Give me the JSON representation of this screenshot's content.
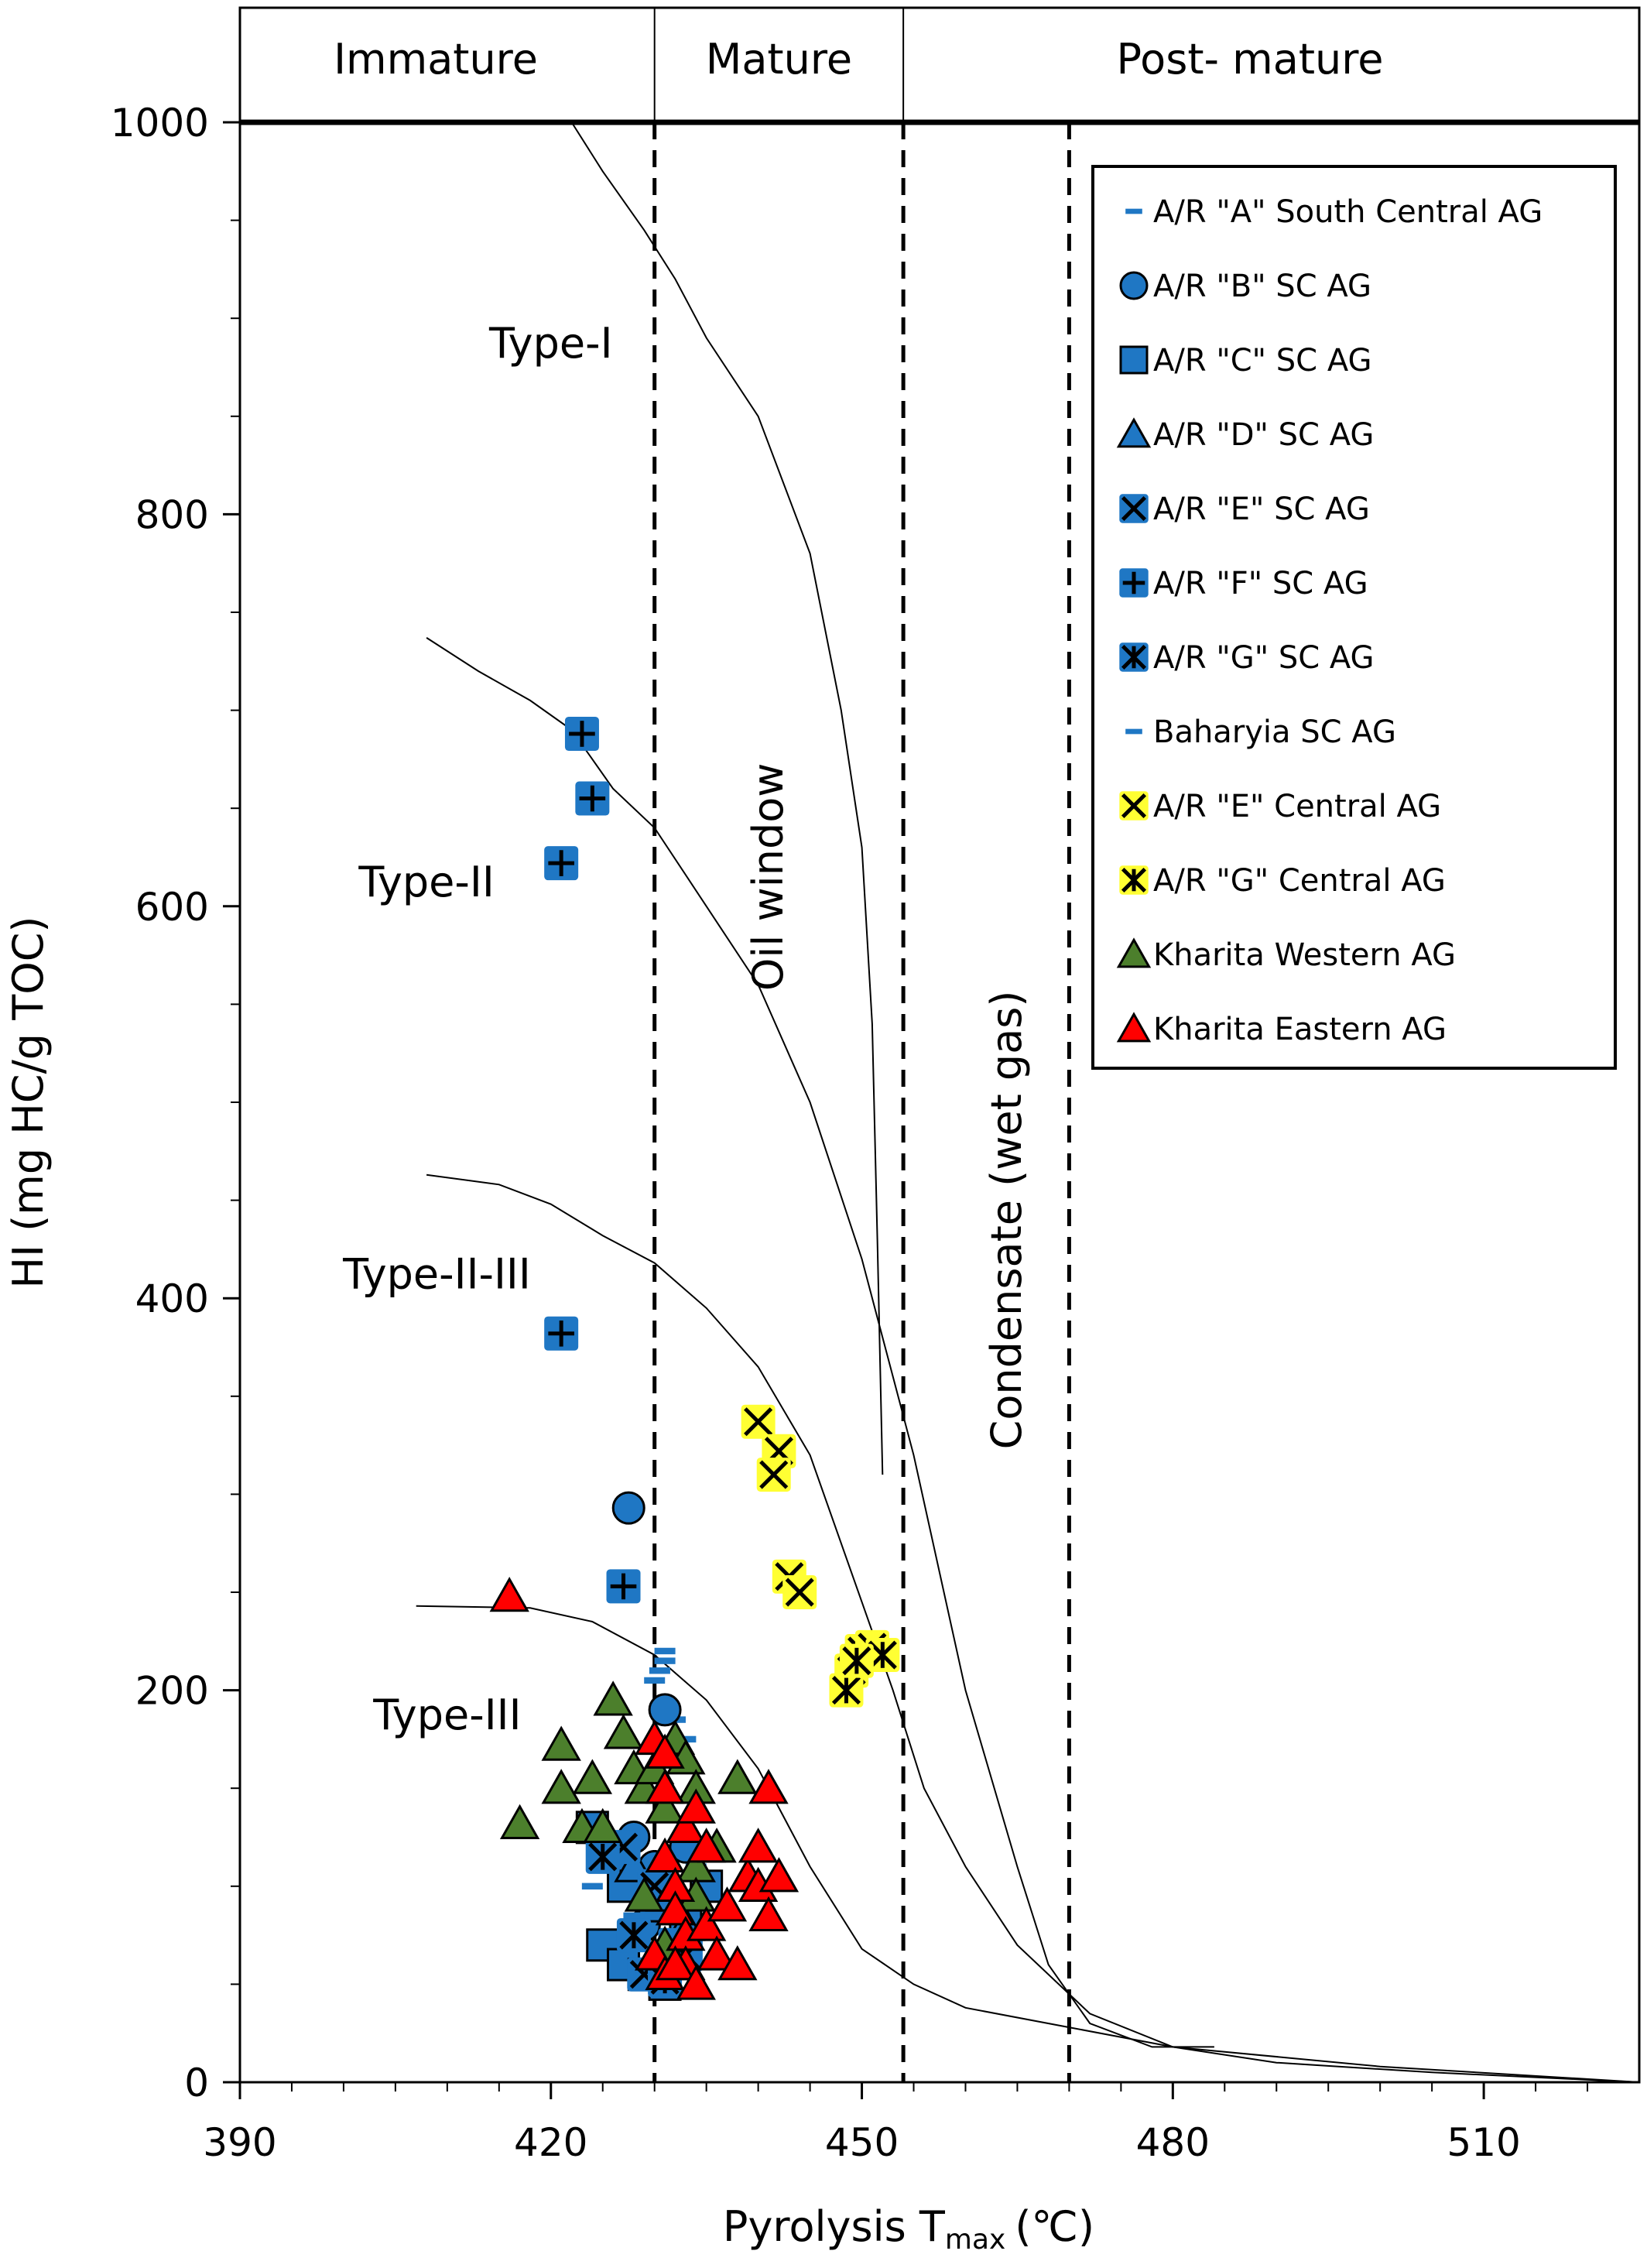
{
  "chart_data": {
    "type": "scatter",
    "xlabel": "Pyrolysis T",
    "xlabel_sub": "max",
    "xlabel_unit": "(℃)",
    "ylabel": "HI (mg HC/g TOC)",
    "xlim": [
      390,
      525
    ],
    "ylim": [
      0,
      1000
    ],
    "x_ticks": [
      390,
      420,
      450,
      480,
      510
    ],
    "y_ticks": [
      0,
      200,
      400,
      600,
      800,
      1000
    ],
    "grid": false,
    "legend_position": "top-right",
    "maturity_zones": [
      {
        "label": "Immature",
        "x_range": [
          390,
          430
        ]
      },
      {
        "label": "Mature",
        "x_range": [
          430,
          454
        ]
      },
      {
        "label": "Post- mature",
        "x_range": [
          454,
          525
        ]
      }
    ],
    "vertical_dashed_lines": [
      430,
      454,
      470
    ],
    "window_labels": [
      {
        "text": "Oil window",
        "x": 441,
        "y": 615
      },
      {
        "text": "Condensate (wet gas)",
        "x": 464,
        "y": 440
      }
    ],
    "kerogen_type_labels": [
      {
        "text": "Type-I",
        "x": 420,
        "y": 880
      },
      {
        "text": "Type-II",
        "x": 408,
        "y": 605
      },
      {
        "text": "Type-II-III",
        "x": 409,
        "y": 405
      },
      {
        "text": "Type-III",
        "x": 410,
        "y": 180
      }
    ],
    "kerogen_curves": [
      {
        "points": [
          [
            422,
            1000
          ],
          [
            425,
            975
          ],
          [
            429,
            945
          ],
          [
            432,
            920
          ],
          [
            435,
            890
          ],
          [
            440,
            850
          ],
          [
            445,
            780
          ],
          [
            448,
            700
          ],
          [
            450,
            630
          ],
          [
            451,
            540
          ],
          [
            451.5,
            430
          ],
          [
            452,
            310
          ]
        ]
      },
      {
        "points": [
          [
            408,
            737
          ],
          [
            413,
            720
          ],
          [
            418,
            705
          ],
          [
            422,
            690
          ],
          [
            426,
            660
          ],
          [
            430,
            640
          ],
          [
            435,
            600
          ],
          [
            440,
            560
          ],
          [
            445,
            500
          ],
          [
            450,
            420
          ],
          [
            455,
            320
          ],
          [
            460,
            200
          ],
          [
            465,
            110
          ],
          [
            468,
            60
          ],
          [
            472,
            30
          ],
          [
            478,
            18
          ],
          [
            484,
            18
          ]
        ]
      },
      {
        "points": [
          [
            408,
            463
          ],
          [
            415,
            458
          ],
          [
            420,
            448
          ],
          [
            425,
            432
          ],
          [
            430,
            418
          ],
          [
            435,
            395
          ],
          [
            440,
            365
          ],
          [
            445,
            320
          ],
          [
            450,
            245
          ],
          [
            453,
            200
          ],
          [
            456,
            150
          ],
          [
            460,
            110
          ],
          [
            465,
            70
          ],
          [
            472,
            35
          ],
          [
            480,
            18
          ],
          [
            490,
            10
          ],
          [
            505,
            5
          ],
          [
            525,
            0
          ]
        ]
      },
      {
        "points": [
          [
            407,
            243
          ],
          [
            418,
            242
          ],
          [
            424,
            235
          ],
          [
            430,
            218
          ],
          [
            435,
            195
          ],
          [
            440,
            160
          ],
          [
            445,
            110
          ],
          [
            450,
            68
          ],
          [
            455,
            50
          ],
          [
            460,
            38
          ],
          [
            470,
            28
          ],
          [
            480,
            18
          ],
          [
            500,
            8
          ],
          [
            525,
            0
          ]
        ]
      }
    ],
    "legend": [
      {
        "label": "A/R \"A\" South Central AG",
        "marker": "dash",
        "color": "#1f77c4"
      },
      {
        "label": "A/R \"B\" SC AG",
        "marker": "circle",
        "color": "#1f77c4"
      },
      {
        "label": "A/R \"C\" SC AG",
        "marker": "square",
        "color": "#1f77c4"
      },
      {
        "label": "A/R \"D\" SC AG",
        "marker": "triangle",
        "color": "#1f77c4"
      },
      {
        "label": "A/R \"E\" SC AG",
        "marker": "x",
        "color": "#1f77c4"
      },
      {
        "label": "A/R \"F\" SC AG",
        "marker": "plus",
        "color": "#1f77c4"
      },
      {
        "label": "A/R \"G\" SC AG",
        "marker": "star",
        "color": "#1f77c4"
      },
      {
        "label": "Baharyia SC AG",
        "marker": "dash",
        "color": "#1f77c4"
      },
      {
        "label": "A/R \"E\" Central AG",
        "marker": "x",
        "color": "#ffff33"
      },
      {
        "label": "A/R \"G\" Central AG",
        "marker": "star",
        "color": "#ffff33"
      },
      {
        "label": "Kharita Western AG",
        "marker": "triangle",
        "color": "#4c7f2c"
      },
      {
        "label": "Kharita Eastern AG",
        "marker": "triangle",
        "color": "#ff0000"
      }
    ],
    "series": [
      {
        "name": "A/R \"A\" South Central AG",
        "marker": "dash",
        "color": "#1f77c4",
        "points": [
          [
            431,
            220
          ],
          [
            430.5,
            210
          ],
          [
            431,
            195
          ],
          [
            432,
            185
          ],
          [
            433,
            175
          ],
          [
            425,
            70
          ],
          [
            426,
            65
          ],
          [
            428,
            60
          ],
          [
            434,
            110
          ],
          [
            435,
            95
          ]
        ]
      },
      {
        "name": "A/R \"B\" SC AG",
        "marker": "circle",
        "color": "#1f77c4",
        "points": [
          [
            427.5,
            293
          ],
          [
            431,
            190
          ],
          [
            428,
            125
          ],
          [
            430,
            110
          ],
          [
            433,
            120
          ],
          [
            429,
            80
          ],
          [
            432,
            70
          ]
        ]
      },
      {
        "name": "A/R \"C\" SC AG",
        "marker": "square",
        "color": "#1f77c4",
        "points": [
          [
            424,
            130
          ],
          [
            426,
            115
          ],
          [
            427,
            100
          ],
          [
            430,
            90
          ],
          [
            425,
            70
          ],
          [
            427,
            60
          ],
          [
            429,
            55
          ],
          [
            431,
            50
          ],
          [
            433,
            80
          ],
          [
            435,
            100
          ]
        ]
      },
      {
        "name": "A/R \"D\" SC AG",
        "marker": "triangle",
        "color": "#1f77c4",
        "points": [
          [
            428,
            110
          ],
          [
            431,
            95
          ],
          [
            433,
            80
          ],
          [
            430,
            65
          ]
        ]
      },
      {
        "name": "A/R \"E\" SC AG",
        "marker": "x",
        "color": "#1f77c4",
        "points": [
          [
            427,
            120
          ],
          [
            430,
            100
          ],
          [
            432,
            70
          ],
          [
            429,
            55
          ],
          [
            431,
            60
          ]
        ]
      },
      {
        "name": "A/R \"F\" SC AG",
        "marker": "plus",
        "color": "#1f77c4",
        "points": [
          [
            423,
            688
          ],
          [
            424,
            655
          ],
          [
            421,
            622
          ],
          [
            421,
            382
          ],
          [
            427,
            253
          ]
        ]
      },
      {
        "name": "A/R \"G\" SC AG",
        "marker": "star",
        "color": "#1f77c4",
        "points": [
          [
            425,
            115
          ],
          [
            428,
            75
          ],
          [
            431,
            52
          ],
          [
            433,
            65
          ]
        ]
      },
      {
        "name": "Baharyia SC AG",
        "marker": "dash",
        "color": "#1f77c4",
        "points": [
          [
            431,
            215
          ],
          [
            430,
            205
          ],
          [
            424,
            100
          ],
          [
            428,
            85
          ]
        ]
      },
      {
        "name": "A/R \"E\" Central AG",
        "marker": "x",
        "color": "#ffff33",
        "points": [
          [
            440,
            337
          ],
          [
            442,
            322
          ],
          [
            441.5,
            310
          ],
          [
            443,
            258
          ],
          [
            444,
            250
          ],
          [
            450,
            220
          ],
          [
            451,
            222
          ]
        ]
      },
      {
        "name": "A/R \"G\" Central AG",
        "marker": "star",
        "color": "#ffff33",
        "points": [
          [
            449,
            210
          ],
          [
            448.5,
            200
          ],
          [
            452,
            218
          ],
          [
            449.5,
            215
          ]
        ]
      },
      {
        "name": "Kharita Western AG",
        "marker": "triangle",
        "color": "#4c7f2c",
        "points": [
          [
            417,
            132
          ],
          [
            421,
            172
          ],
          [
            421,
            150
          ],
          [
            423,
            130
          ],
          [
            424,
            155
          ],
          [
            425,
            130
          ],
          [
            426,
            195
          ],
          [
            427,
            178
          ],
          [
            428,
            160
          ],
          [
            429,
            150
          ],
          [
            430,
            160
          ],
          [
            431,
            140
          ],
          [
            432,
            175
          ],
          [
            433,
            165
          ],
          [
            434,
            150
          ],
          [
            434,
            110
          ],
          [
            436,
            120
          ],
          [
            438,
            155
          ],
          [
            429,
            95
          ],
          [
            431,
            70
          ],
          [
            434,
            95
          ]
        ]
      },
      {
        "name": "Kharita Eastern AG",
        "marker": "triangle",
        "color": "#ff0000",
        "points": [
          [
            416,
            248
          ],
          [
            430,
            175
          ],
          [
            431,
            168
          ],
          [
            431,
            150
          ],
          [
            431,
            115
          ],
          [
            432,
            100
          ],
          [
            433,
            130
          ],
          [
            432,
            88
          ],
          [
            433,
            75
          ],
          [
            433,
            60
          ],
          [
            434,
            140
          ],
          [
            435,
            120
          ],
          [
            435,
            80
          ],
          [
            436,
            65
          ],
          [
            437,
            90
          ],
          [
            438,
            60
          ],
          [
            439,
            105
          ],
          [
            440,
            120
          ],
          [
            440,
            100
          ],
          [
            441,
            150
          ],
          [
            441,
            85
          ],
          [
            442,
            105
          ],
          [
            430,
            65
          ],
          [
            431,
            55
          ],
          [
            432,
            60
          ],
          [
            434,
            50
          ]
        ]
      }
    ]
  }
}
